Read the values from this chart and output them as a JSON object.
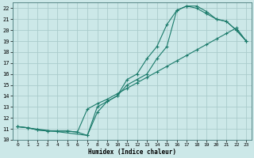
{
  "xlabel": "Humidex (Indice chaleur)",
  "bg_color": "#cce8e8",
  "grid_color": "#aacccc",
  "line_color": "#1a7a6a",
  "xlim": [
    -0.5,
    23.5
  ],
  "ylim": [
    10,
    22.5
  ],
  "xticks": [
    0,
    1,
    2,
    3,
    4,
    5,
    6,
    7,
    8,
    9,
    10,
    11,
    12,
    13,
    14,
    15,
    16,
    17,
    18,
    19,
    20,
    21,
    22,
    23
  ],
  "yticks": [
    10,
    11,
    12,
    13,
    14,
    15,
    16,
    17,
    18,
    19,
    20,
    21,
    22
  ],
  "line1_x": [
    0,
    1,
    2,
    3,
    4,
    5,
    6,
    7,
    8,
    9,
    10,
    11,
    12,
    13,
    14,
    15,
    16,
    17,
    18,
    19,
    20,
    21,
    22,
    23
  ],
  "line1_y": [
    11.2,
    11.1,
    10.9,
    10.8,
    10.8,
    10.8,
    10.7,
    10.4,
    12.5,
    13.5,
    14.0,
    15.5,
    16.0,
    17.4,
    18.5,
    20.5,
    21.8,
    22.2,
    22.2,
    21.7,
    21.0,
    20.8,
    20.0,
    19.0
  ],
  "line2_x": [
    0,
    1,
    2,
    3,
    4,
    5,
    6,
    7,
    8,
    9,
    10,
    11,
    12,
    13,
    14,
    15,
    16,
    17,
    18,
    19,
    20,
    21,
    22,
    23
  ],
  "line2_y": [
    11.2,
    11.1,
    10.9,
    10.8,
    10.8,
    10.8,
    10.7,
    12.8,
    13.3,
    13.7,
    14.2,
    14.7,
    15.2,
    15.7,
    16.2,
    16.7,
    17.2,
    17.7,
    18.2,
    18.7,
    19.2,
    19.7,
    20.2,
    19.0
  ],
  "line3_x": [
    0,
    7,
    8,
    9,
    10,
    11,
    12,
    13,
    14,
    15,
    16,
    17,
    18,
    19,
    20,
    21,
    22,
    23
  ],
  "line3_y": [
    11.2,
    10.4,
    13.0,
    13.5,
    14.0,
    15.0,
    15.5,
    16.0,
    17.4,
    18.5,
    21.8,
    22.2,
    22.0,
    21.5,
    21.0,
    20.8,
    20.0,
    19.0
  ]
}
